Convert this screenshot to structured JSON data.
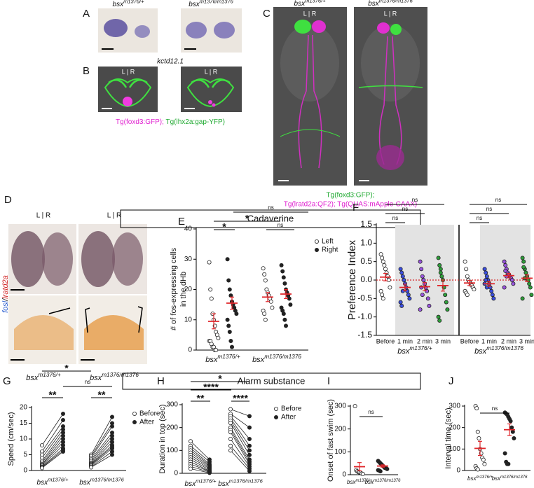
{
  "figure": {
    "image_panels": [
      "A",
      "B",
      "C",
      "D"
    ],
    "genotype": {
      "gene": "bsx",
      "het": "m1376/+",
      "hom": "m1376/m1376"
    },
    "lr": "L | R",
    "probe_A": "kctd12.1",
    "caption_B": [
      {
        "text": "Tg(foxd3:GFP)",
        "color": "#e020d0"
      },
      {
        "text": "; ",
        "color": "#e020d0"
      },
      {
        "text": "Tg(lhx2a:gap-YFP)",
        "color": "#22aa33"
      }
    ],
    "caption_C": [
      {
        "text": "Tg(foxd3:GFP);",
        "color": "#22aa33"
      },
      {
        "text": "Tg(lratd2a:QF2); Tg(QUAS:mApple-CAAX)",
        "color": "#e020d0"
      }
    ],
    "probe_D": [
      {
        "text": "fosl",
        "color": "#2d5fd0"
      },
      {
        "text": "/",
        "color": "#111111"
      },
      {
        "text": "lratd2a",
        "color": "#d02020"
      }
    ],
    "section_cadaverine": "Cadaverine",
    "section_alarm": "Alarm substance"
  },
  "chart_data": [
    {
      "type": "dot",
      "panel": "E",
      "ylabel": [
        "# of fos-expressing cells",
        "in the dHb"
      ],
      "ylim": [
        0,
        40
      ],
      "yticks": [
        0,
        10,
        20,
        30,
        40
      ],
      "categories": [
        "bsx",
        "bsx"
      ],
      "category_superscripts": [
        "m1376/+",
        "m1376/m1376"
      ],
      "mean_color": "#e0262a",
      "legend": "upper right",
      "series": [
        {
          "name": "Left",
          "fill": "#ffffff",
          "values": [
            [
              29,
              20,
              17,
              12,
              10,
              8,
              6,
              5,
              4,
              3,
              3,
              2,
              1,
              1,
              0,
              0
            ],
            [
              27,
              25,
              23,
              20,
              19,
              18,
              17,
              16,
              14,
              13,
              12,
              10
            ]
          ],
          "means": [
            9.5,
            17.5
          ],
          "sems": [
            2.5,
            1.5
          ]
        },
        {
          "name": "Right",
          "fill": "#222222",
          "values": [
            [
              30,
              23,
              20,
              18,
              16,
              15,
              14,
              13,
              12,
              10,
              8,
              6,
              3,
              1
            ],
            [
              28,
              26,
              24,
              22,
              20,
              19,
              18,
              17,
              15,
              14,
              13,
              12,
              10,
              8
            ]
          ],
          "means": [
            15.5,
            18.5
          ],
          "sems": [
            2,
            1.5
          ]
        }
      ],
      "annotations": [
        "ns",
        "*",
        "*",
        "ns"
      ]
    },
    {
      "type": "dot",
      "panel": "F",
      "ylabel": [
        "Preference Index"
      ],
      "ylim": [
        -1.5,
        1.5
      ],
      "yticks": [
        1.5,
        {
          "value": 1,
          "label": "1.0"
        },
        0.5,
        {
          "value": 0,
          "label": "0.0"
        },
        -0.5,
        {
          "value": -1,
          "label": "-1.0"
        },
        -1.5
      ],
      "hline": 0,
      "hline_color": "#d62728",
      "categories": [
        "bsx",
        "bsx"
      ],
      "category_superscripts": [
        "m1376/+",
        "m1376/m1376"
      ],
      "mean_color": "#e0262a",
      "series": [
        {
          "name": "Before",
          "fill": "#ffffff",
          "values": [
            [
              0.7,
              0.6,
              0.5,
              0.4,
              0.3,
              0.2,
              0.1,
              0,
              -0.2,
              -0.3,
              -0.4,
              -0.5
            ],
            [
              0.5,
              0.3,
              0.1,
              0,
              -0.05,
              -0.1,
              -0.15,
              -0.2,
              -0.25,
              -0.3,
              -0.35,
              -0.4
            ]
          ],
          "means": [
            0.08,
            -0.08
          ],
          "sems": [
            0.1,
            0.07
          ]
        },
        {
          "name": "1 min",
          "fill": "#3b4fe0",
          "values": [
            [
              0.3,
              0.2,
              0.1,
              0,
              -0.1,
              -0.2,
              -0.3,
              -0.4,
              -0.5,
              -0.6,
              -0.7,
              -0.3
            ],
            [
              0.3,
              0.2,
              0.1,
              0,
              -0.1,
              -0.2,
              -0.3,
              -0.4,
              -0.5,
              -0.1,
              0,
              -0.2
            ]
          ],
          "means": [
            -0.2,
            -0.1
          ],
          "sems": [
            0.09,
            0.07
          ]
        },
        {
          "name": "2 min",
          "fill": "#9a55e0",
          "values": [
            [
              0.5,
              0.3,
              0.1,
              0,
              -0.1,
              -0.2,
              -0.3,
              -0.5,
              -0.7,
              -0.8,
              -0.2,
              -0.4
            ],
            [
              0.5,
              0.4,
              0.3,
              0.2,
              0.15,
              0.1,
              0.05,
              0,
              -0.1,
              -0.2,
              0.25,
              0.1
            ]
          ],
          "means": [
            -0.18,
            0.12
          ],
          "sems": [
            0.11,
            0.06
          ]
        },
        {
          "name": "3 min",
          "fill": "#2e9e3a",
          "values": [
            [
              0.6,
              0.4,
              0.3,
              0.1,
              0,
              -0.2,
              -0.4,
              -0.6,
              -0.8,
              -1.0,
              -1.1,
              0.2
            ],
            [
              0.6,
              0.5,
              0.3,
              0.2,
              0.1,
              0,
              -0.1,
              -0.2,
              -0.4,
              -0.5,
              0.35,
              0.05
            ]
          ],
          "means": [
            -0.15,
            0.05
          ],
          "sems": [
            0.15,
            0.09
          ]
        }
      ],
      "annotations": [
        "ns",
        "ns",
        "ns",
        "ns",
        "ns",
        "ns"
      ]
    },
    {
      "type": "paired",
      "panel": "G",
      "ylabel": [
        "Speed (cm/sec)"
      ],
      "ylim": [
        0,
        20
      ],
      "yticks": [
        0,
        5,
        10,
        15,
        20
      ],
      "categories": [
        "bsx",
        "bsx"
      ],
      "category_superscripts": [
        "m1376/+",
        "m1376/m1376"
      ],
      "legend": "upper right",
      "series": [
        {
          "name": "Before",
          "fill": "#ffffff",
          "values": [
            [
              8,
              6,
              5,
              4,
              3,
              2.5,
              2,
              1.8,
              1.5,
              1.2,
              1,
              0.8
            ],
            [
              5,
              4.5,
              4,
              3.5,
              3,
              2.5,
              2.2,
              2,
              1.8,
              1.5,
              1.2,
              1
            ]
          ]
        },
        {
          "name": "After",
          "fill": "#222222",
          "values": [
            [
              18,
              16,
              14,
              13,
              12,
              11,
              10,
              9,
              8,
              7,
              6.5,
              6
            ],
            [
              17,
              15,
              14,
              12,
              11,
              10,
              9,
              8,
              7.5,
              7,
              6,
              5
            ]
          ]
        }
      ],
      "annotations": [
        "*",
        "ns",
        "**",
        "**"
      ]
    },
    {
      "type": "paired",
      "panel": "H",
      "ylabel": [
        "Duration in top (sec)"
      ],
      "ylim": [
        0,
        300
      ],
      "yticks": [
        0,
        100,
        200,
        300
      ],
      "categories": [
        "bsx",
        "bsx"
      ],
      "category_superscripts": [
        "m1376/+",
        "m1376/m1376"
      ],
      "legend": "upper right",
      "series": [
        {
          "name": "Before",
          "fill": "#ffffff",
          "values": [
            [
              140,
              120,
              110,
              100,
              90,
              80,
              70,
              60,
              50,
              40,
              30,
              20
            ],
            [
              280,
              260,
              250,
              240,
              230,
              220,
              200,
              190,
              180,
              150,
              120,
              100
            ]
          ]
        },
        {
          "name": "After",
          "fill": "#222222",
          "values": [
            [
              60,
              50,
              40,
              35,
              30,
              25,
              20,
              15,
              10,
              8,
              5,
              2
            ],
            [
              250,
              200,
              150,
              120,
              100,
              80,
              60,
              50,
              40,
              30,
              20,
              10
            ]
          ]
        }
      ],
      "annotations": [
        "*",
        "****",
        "**",
        "****"
      ]
    },
    {
      "type": "dot",
      "panel": "I",
      "ylabel": [
        "Onset of fast swim (sec)"
      ],
      "ylim": [
        0,
        300
      ],
      "yticks": [
        0,
        100,
        200,
        300
      ],
      "categories": [
        "bsx",
        "bsx"
      ],
      "category_superscripts": [
        "m1376/+",
        "m1376/m1376"
      ],
      "mean_color": "#e0262a",
      "series": [
        {
          "fill": [
            "#ffffff",
            "#222222"
          ],
          "values": [
            [
              300,
              20,
              15,
              12,
              10,
              8,
              5,
              3
            ],
            [
              60,
              55,
              50,
              45,
              40,
              35,
              30,
              28,
              25,
              20,
              18,
              15
            ]
          ],
          "means": [
            35,
            38
          ],
          "sems": [
            18,
            5
          ]
        }
      ],
      "annotations": [
        "ns"
      ]
    },
    {
      "type": "dot",
      "panel": "J",
      "ylabel": [
        "Interval time (sec)"
      ],
      "ylim": [
        0,
        300
      ],
      "yticks": [
        0,
        100,
        200,
        300
      ],
      "categories": [
        "bsx",
        "bsx"
      ],
      "category_superscripts": [
        "m1376/+",
        "m1376/m1376"
      ],
      "mean_color": "#e0262a",
      "series": [
        {
          "fill": [
            "#ffffff",
            "#222222"
          ],
          "values": [
            [
              300,
              290,
              180,
              150,
              100,
              80,
              60,
              50,
              30,
              20,
              10,
              5
            ],
            [
              270,
              265,
              260,
              250,
              240,
              230,
              200,
              180,
              150,
              80,
              40,
              30,
              30
            ]
          ],
          "means": [
            103,
            190
          ],
          "sems": [
            33,
            27
          ]
        }
      ],
      "annotations": [
        "ns"
      ]
    }
  ]
}
